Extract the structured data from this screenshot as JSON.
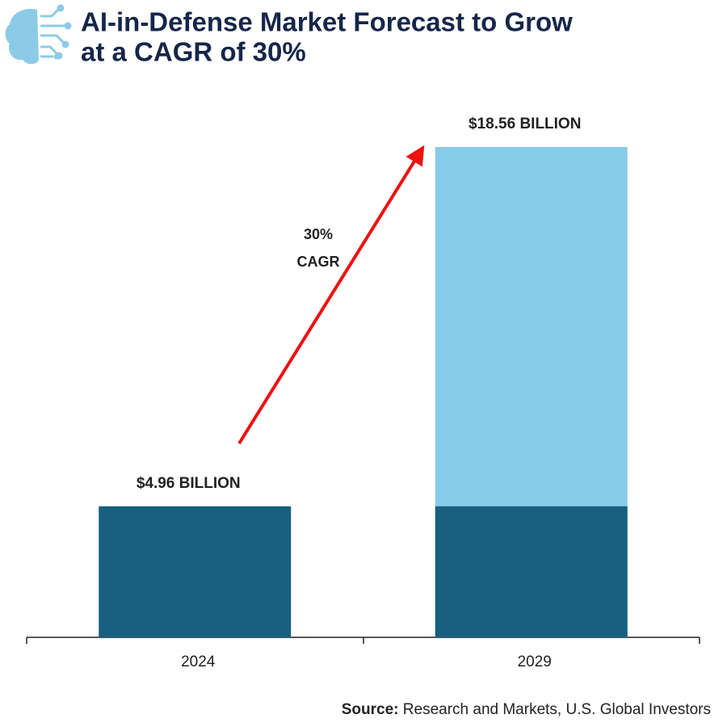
{
  "chart_data": {
    "type": "bar",
    "title": [
      "AI-in-Defense Market Forecast to Grow",
      "at a CAGR of 30%"
    ],
    "categories": [
      "2024",
      "2029"
    ],
    "values": [
      4.96,
      18.56
    ],
    "value_labels": [
      "$4.96 BILLION",
      "$18.56 BILLION"
    ],
    "colors": [
      "#17607f",
      "#87cbea"
    ],
    "annotation": [
      "30%",
      "CAGR"
    ],
    "arrow_color": "#ee1111",
    "source_label": "Source:",
    "source": "Research and Markets, U.S. Global Investors"
  }
}
